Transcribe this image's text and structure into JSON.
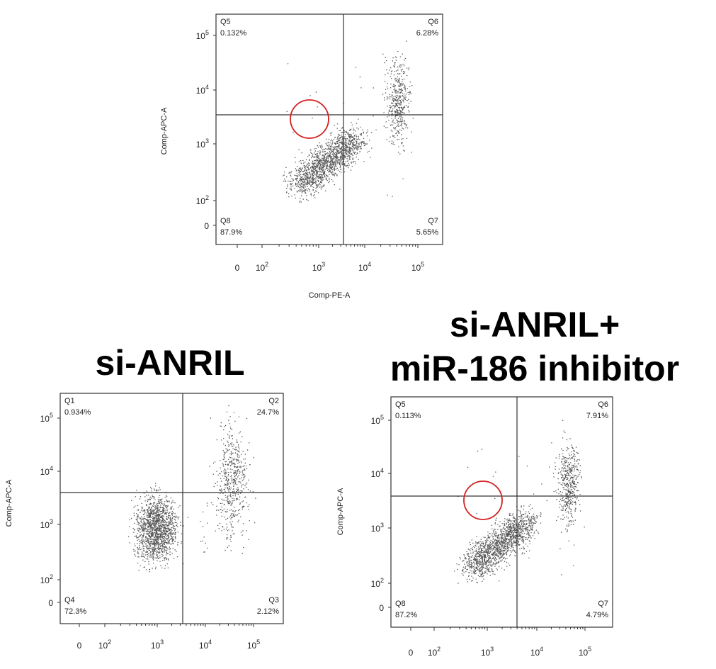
{
  "panels": [
    {
      "title": [],
      "quadrants": [
        {
          "label": "Q5",
          "percent": "0.132%"
        },
        {
          "label": "Q6",
          "percent": "6.28%"
        },
        {
          "label": "Q8",
          "percent": "87.9%"
        },
        {
          "label": "Q7",
          "percent": "5.65%"
        }
      ],
      "y_axis_label": "Comp-APC-A",
      "x_axis_label": "Comp-PE-A",
      "y_ticks": [
        {
          "base": "10",
          "exp": "5"
        },
        {
          "base": "10",
          "exp": "4"
        },
        {
          "base": "10",
          "exp": "3"
        },
        {
          "base": "10",
          "exp": "2"
        },
        {
          "text": "0"
        }
      ],
      "x_ticks": [
        {
          "text": "0"
        },
        {
          "base": "10",
          "exp": "2"
        },
        {
          "base": "10",
          "exp": "3"
        },
        {
          "base": "10",
          "exp": "4"
        },
        {
          "base": "10",
          "exp": "5"
        }
      ]
    },
    {
      "title": [
        "si-ANRIL"
      ],
      "quadrants": [
        {
          "label": "Q1",
          "percent": "0.934%"
        },
        {
          "label": "Q2",
          "percent": "24.7%"
        },
        {
          "label": "Q4",
          "percent": "72.3%"
        },
        {
          "label": "Q3",
          "percent": "2.12%"
        }
      ],
      "y_axis_label": "Comp-APC-A",
      "y_ticks": [
        {
          "base": "10",
          "exp": "5"
        },
        {
          "base": "10",
          "exp": "4"
        },
        {
          "base": "10",
          "exp": "3"
        },
        {
          "base": "10",
          "exp": "2"
        },
        {
          "text": "0"
        }
      ],
      "x_ticks": [
        {
          "text": "0"
        },
        {
          "base": "10",
          "exp": "2"
        },
        {
          "base": "10",
          "exp": "3"
        },
        {
          "base": "10",
          "exp": "4"
        },
        {
          "base": "10",
          "exp": "5"
        }
      ]
    },
    {
      "title": [
        "si-ANRIL+",
        "miR-186 inhibitor"
      ],
      "quadrants": [
        {
          "label": "Q5",
          "percent": "0.113%"
        },
        {
          "label": "Q6",
          "percent": "7.91%"
        },
        {
          "label": "Q8",
          "percent": "87.2%"
        },
        {
          "label": "Q7",
          "percent": "4.79%"
        }
      ],
      "y_axis_label": "Comp-APC-A",
      "y_ticks": [
        {
          "base": "10",
          "exp": "5"
        },
        {
          "base": "10",
          "exp": "4"
        },
        {
          "base": "10",
          "exp": "3"
        },
        {
          "base": "10",
          "exp": "2"
        },
        {
          "text": "0"
        }
      ],
      "x_ticks": [
        {
          "text": "0"
        },
        {
          "base": "10",
          "exp": "2"
        },
        {
          "base": "10",
          "exp": "3"
        },
        {
          "base": "10",
          "exp": "4"
        },
        {
          "base": "10",
          "exp": "5"
        }
      ]
    }
  ]
}
